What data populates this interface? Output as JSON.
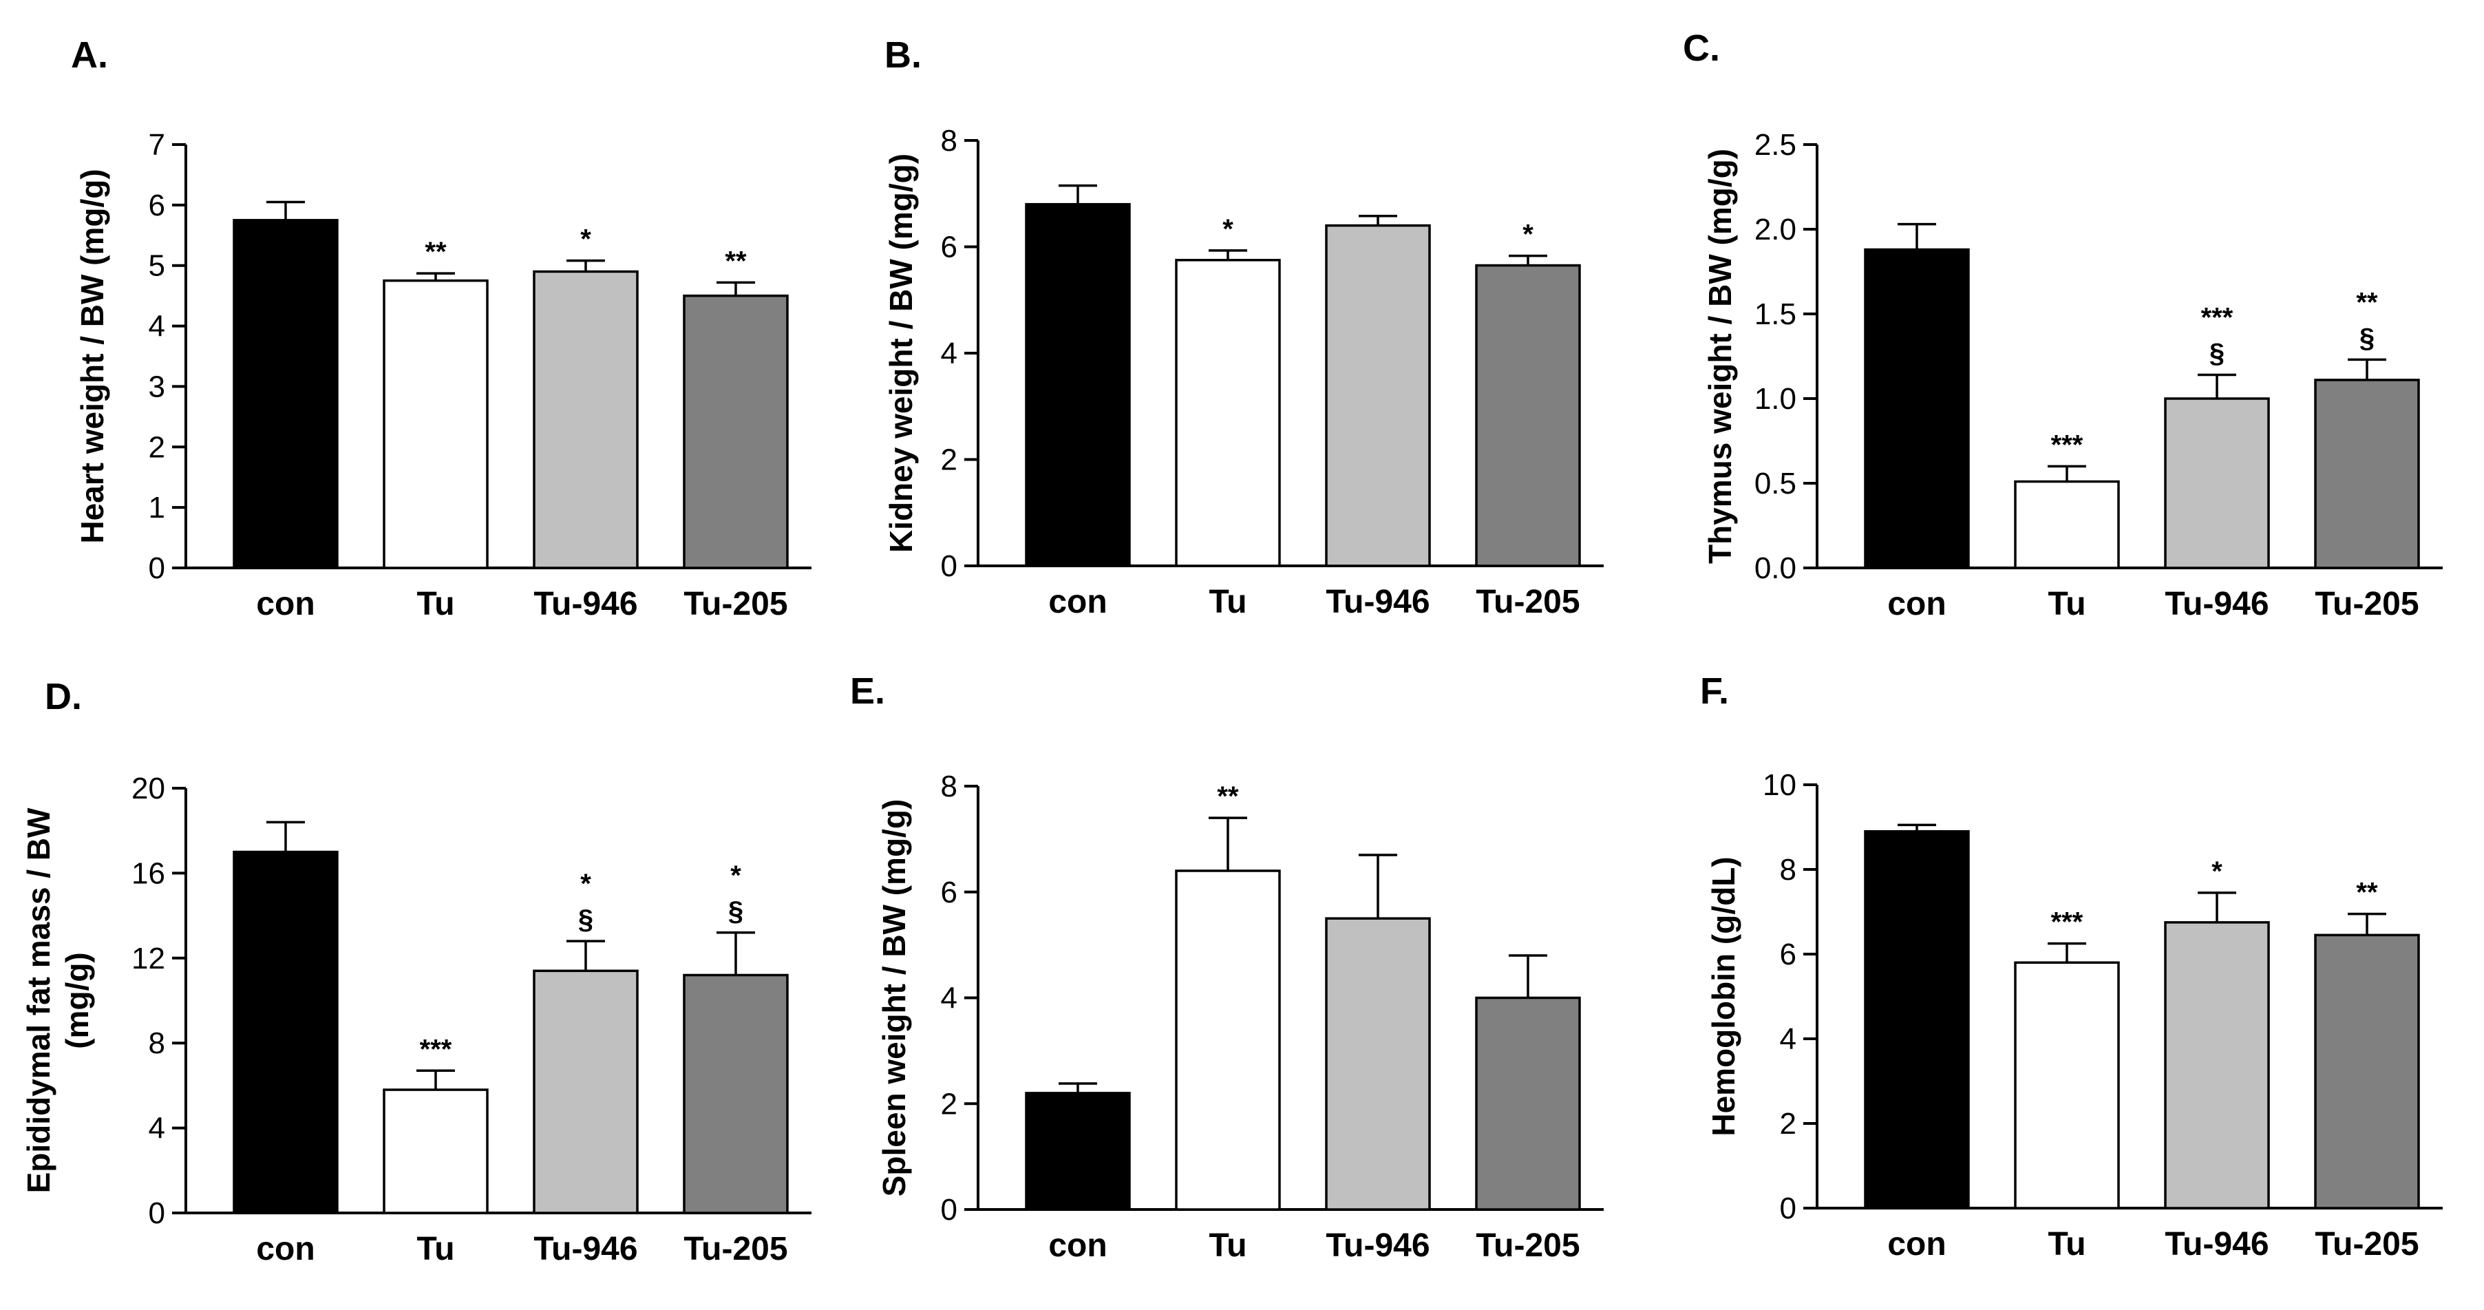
{
  "colors": {
    "con": "#000000",
    "Tu": "#ffffff",
    "Tu-946": "#c0c0c0",
    "Tu-205": "#808080",
    "axis": "#000000"
  },
  "chart_data": [
    {
      "panel": "A.",
      "type": "bar",
      "categories": [
        "con",
        "Tu",
        "Tu-946",
        "Tu-205"
      ],
      "values": [
        5.75,
        4.75,
        4.9,
        4.5
      ],
      "errors": [
        0.3,
        0.12,
        0.18,
        0.22
      ],
      "annotations": [
        [],
        [
          "**"
        ],
        [
          "*"
        ],
        [
          "**"
        ]
      ],
      "ylabel": [
        "Heart weight / BW (mg/g)"
      ],
      "ylim": [
        0,
        7
      ],
      "yticks": [
        0,
        1,
        2,
        3,
        4,
        5,
        6,
        7
      ],
      "ytick_labels": [
        "0",
        "1",
        "2",
        "3",
        "4",
        "5",
        "6",
        "7"
      ]
    },
    {
      "panel": "B.",
      "type": "bar",
      "categories": [
        "con",
        "Tu",
        "Tu-946",
        "Tu-205"
      ],
      "values": [
        6.8,
        5.75,
        6.4,
        5.65
      ],
      "errors": [
        0.35,
        0.18,
        0.18,
        0.18
      ],
      "annotations": [
        [],
        [
          "*"
        ],
        [],
        [
          "*"
        ]
      ],
      "ylabel": [
        "Kidney weight / BW (mg/g)"
      ],
      "ylim": [
        0,
        8
      ],
      "yticks": [
        0,
        2,
        4,
        6,
        8
      ],
      "ytick_labels": [
        "0",
        "2",
        "4",
        "6",
        "8"
      ]
    },
    {
      "panel": "C.",
      "type": "bar",
      "categories": [
        "con",
        "Tu",
        "Tu-946",
        "Tu-205"
      ],
      "values": [
        1.88,
        0.51,
        1.0,
        1.11
      ],
      "errors": [
        0.15,
        0.09,
        0.14,
        0.12
      ],
      "annotations": [
        [],
        [
          "***"
        ],
        [
          "***",
          "§"
        ],
        [
          "**",
          "§"
        ]
      ],
      "ylabel": [
        "Thymus weight / BW (mg/g)"
      ],
      "ylim": [
        0,
        2.5
      ],
      "yticks": [
        0,
        0.5,
        1,
        1.5,
        2,
        2.5
      ],
      "ytick_labels": [
        "0.0",
        "0.5",
        "1.0",
        "1.5",
        "2.0",
        "2.5"
      ]
    },
    {
      "panel": "D.",
      "type": "bar",
      "categories": [
        "con",
        "Tu",
        "Tu-946",
        "Tu-205"
      ],
      "values": [
        17.0,
        5.8,
        11.4,
        11.2
      ],
      "errors": [
        1.4,
        0.9,
        1.4,
        2.0
      ],
      "annotations": [
        [],
        [
          "***"
        ],
        [
          "*",
          "§"
        ],
        [
          "*",
          "§"
        ]
      ],
      "ylabel": [
        "Epididymal fat mass / BW",
        "(mg/g)"
      ],
      "ylim": [
        0,
        20
      ],
      "yticks": [
        0,
        4,
        8,
        12,
        16,
        20
      ],
      "ytick_labels": [
        "0",
        "4",
        "8",
        "12",
        "16",
        "20"
      ]
    },
    {
      "panel": "E.",
      "type": "bar",
      "categories": [
        "con",
        "Tu",
        "Tu-946",
        "Tu-205"
      ],
      "values": [
        2.2,
        6.4,
        5.5,
        4.0
      ],
      "errors": [
        0.18,
        1.0,
        1.2,
        0.8
      ],
      "annotations": [
        [],
        [
          "**"
        ],
        [],
        []
      ],
      "ylabel": [
        "Spleen weight / BW (mg/g)"
      ],
      "ylim": [
        0,
        8
      ],
      "yticks": [
        0,
        2,
        4,
        6,
        8
      ],
      "ytick_labels": [
        "0",
        "2",
        "4",
        "6",
        "8"
      ]
    },
    {
      "panel": "F.",
      "type": "bar",
      "categories": [
        "con",
        "Tu",
        "Tu-946",
        "Tu-205"
      ],
      "values": [
        8.9,
        5.8,
        6.75,
        6.45
      ],
      "errors": [
        0.15,
        0.45,
        0.7,
        0.5
      ],
      "annotations": [
        [],
        [
          "***"
        ],
        [
          "*"
        ],
        [
          "**"
        ]
      ],
      "ylabel": [
        "Hemoglobin (g/dL)"
      ],
      "ylim": [
        0,
        10
      ],
      "yticks": [
        0,
        2,
        4,
        6,
        8,
        10
      ],
      "ytick_labels": [
        "0",
        "2",
        "4",
        "6",
        "8",
        "10"
      ]
    }
  ]
}
